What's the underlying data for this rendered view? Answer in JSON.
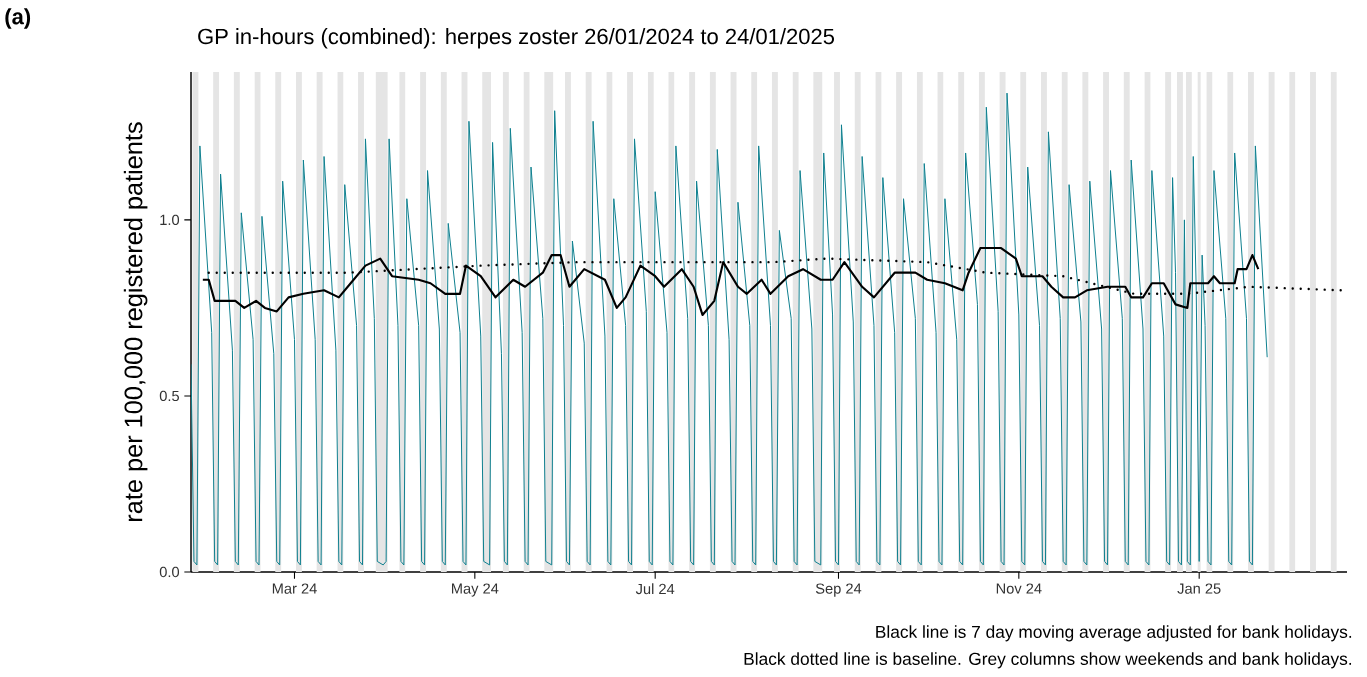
{
  "chart_data": {
    "type": "line",
    "title": "GP in-hours (combined): herpes zoster 26/01/2024 to 24/01/2025",
    "ylabel": "rate per 100,000 registered patients",
    "annotations": [
      "(a)",
      "Black line is 7 day moving average adjusted for bank holidays.",
      "Black dotted line is baseline. Grey columns show weekends and bank holidays."
    ],
    "xlim": [
      "2024-01-26",
      "2025-02-20"
    ],
    "xticks": [
      {
        "value": "2024-03-01",
        "label": "Mar 24"
      },
      {
        "value": "2024-05-01",
        "label": "May 24"
      },
      {
        "value": "2024-07-01",
        "label": "Jul 24"
      },
      {
        "value": "2024-09-01",
        "label": "Sep 24"
      },
      {
        "value": "2024-11-01",
        "label": "Nov 24"
      },
      {
        "value": "2025-01-01",
        "label": "Jan 25"
      }
    ],
    "ylim": [
      0,
      1.42
    ],
    "yticks": [
      {
        "value": 0,
        "label": "0.0"
      },
      {
        "value": 0.5,
        "label": "0.5"
      },
      {
        "value": 1.0,
        "label": "1.0"
      }
    ],
    "bands": [
      {
        "axis": "x",
        "from": "2024-01-26T12:00",
        "to": "2024-01-28T12:00",
        "color": "#e5e5e5"
      },
      {
        "axis": "x",
        "from": "2024-02-02T12:00",
        "to": "2024-02-04T12:00",
        "color": "#e5e5e5"
      },
      {
        "axis": "x",
        "from": "2024-02-09T12:00",
        "to": "2024-02-11T12:00",
        "color": "#e5e5e5"
      },
      {
        "axis": "x",
        "from": "2024-02-16T12:00",
        "to": "2024-02-18T12:00",
        "color": "#e5e5e5"
      },
      {
        "axis": "x",
        "from": "2024-02-23T12:00",
        "to": "2024-02-25T12:00",
        "color": "#e5e5e5"
      },
      {
        "axis": "x",
        "from": "2024-03-01T12:00",
        "to": "2024-03-03T12:00",
        "color": "#e5e5e5"
      },
      {
        "axis": "x",
        "from": "2024-03-08T12:00",
        "to": "2024-03-10T12:00",
        "color": "#e5e5e5"
      },
      {
        "axis": "x",
        "from": "2024-03-15T12:00",
        "to": "2024-03-17T12:00",
        "color": "#e5e5e5"
      },
      {
        "axis": "x",
        "from": "2024-03-22T12:00",
        "to": "2024-03-24T12:00",
        "color": "#e5e5e5"
      },
      {
        "axis": "x",
        "from": "2024-03-28T12:00",
        "to": "2024-04-01T12:00",
        "color": "#e5e5e5"
      },
      {
        "axis": "x",
        "from": "2024-04-05T12:00",
        "to": "2024-04-07T12:00",
        "color": "#e5e5e5"
      },
      {
        "axis": "x",
        "from": "2024-04-12T12:00",
        "to": "2024-04-14T12:00",
        "color": "#e5e5e5"
      },
      {
        "axis": "x",
        "from": "2024-04-19T12:00",
        "to": "2024-04-21T12:00",
        "color": "#e5e5e5"
      },
      {
        "axis": "x",
        "from": "2024-04-26T12:00",
        "to": "2024-04-28T12:00",
        "color": "#e5e5e5"
      },
      {
        "axis": "x",
        "from": "2024-05-03T12:00",
        "to": "2024-05-06T12:00",
        "color": "#e5e5e5"
      },
      {
        "axis": "x",
        "from": "2024-05-10T12:00",
        "to": "2024-05-12T12:00",
        "color": "#e5e5e5"
      },
      {
        "axis": "x",
        "from": "2024-05-17T12:00",
        "to": "2024-05-19T12:00",
        "color": "#e5e5e5"
      },
      {
        "axis": "x",
        "from": "2024-05-24T12:00",
        "to": "2024-05-27T12:00",
        "color": "#e5e5e5"
      },
      {
        "axis": "x",
        "from": "2024-05-31T12:00",
        "to": "2024-06-02T12:00",
        "color": "#e5e5e5"
      },
      {
        "axis": "x",
        "from": "2024-06-07T12:00",
        "to": "2024-06-09T12:00",
        "color": "#e5e5e5"
      },
      {
        "axis": "x",
        "from": "2024-06-14T12:00",
        "to": "2024-06-16T12:00",
        "color": "#e5e5e5"
      },
      {
        "axis": "x",
        "from": "2024-06-21T12:00",
        "to": "2024-06-23T12:00",
        "color": "#e5e5e5"
      },
      {
        "axis": "x",
        "from": "2024-06-28T12:00",
        "to": "2024-06-30T12:00",
        "color": "#e5e5e5"
      },
      {
        "axis": "x",
        "from": "2024-07-05T12:00",
        "to": "2024-07-07T12:00",
        "color": "#e5e5e5"
      },
      {
        "axis": "x",
        "from": "2024-07-12T12:00",
        "to": "2024-07-14T12:00",
        "color": "#e5e5e5"
      },
      {
        "axis": "x",
        "from": "2024-07-19T12:00",
        "to": "2024-07-21T12:00",
        "color": "#e5e5e5"
      },
      {
        "axis": "x",
        "from": "2024-07-26T12:00",
        "to": "2024-07-28T12:00",
        "color": "#e5e5e5"
      },
      {
        "axis": "x",
        "from": "2024-08-02T12:00",
        "to": "2024-08-04T12:00",
        "color": "#e5e5e5"
      },
      {
        "axis": "x",
        "from": "2024-08-09T12:00",
        "to": "2024-08-11T12:00",
        "color": "#e5e5e5"
      },
      {
        "axis": "x",
        "from": "2024-08-16T12:00",
        "to": "2024-08-18T12:00",
        "color": "#e5e5e5"
      },
      {
        "axis": "x",
        "from": "2024-08-23T12:00",
        "to": "2024-08-26T12:00",
        "color": "#e5e5e5"
      },
      {
        "axis": "x",
        "from": "2024-08-30T12:00",
        "to": "2024-09-01T12:00",
        "color": "#e5e5e5"
      },
      {
        "axis": "x",
        "from": "2024-09-06T12:00",
        "to": "2024-09-08T12:00",
        "color": "#e5e5e5"
      },
      {
        "axis": "x",
        "from": "2024-09-13T12:00",
        "to": "2024-09-15T12:00",
        "color": "#e5e5e5"
      },
      {
        "axis": "x",
        "from": "2024-09-20T12:00",
        "to": "2024-09-22T12:00",
        "color": "#e5e5e5"
      },
      {
        "axis": "x",
        "from": "2024-09-27T12:00",
        "to": "2024-09-29T12:00",
        "color": "#e5e5e5"
      },
      {
        "axis": "x",
        "from": "2024-10-04T12:00",
        "to": "2024-10-06T12:00",
        "color": "#e5e5e5"
      },
      {
        "axis": "x",
        "from": "2024-10-11T12:00",
        "to": "2024-10-13T12:00",
        "color": "#e5e5e5"
      },
      {
        "axis": "x",
        "from": "2024-10-18T12:00",
        "to": "2024-10-20T12:00",
        "color": "#e5e5e5"
      },
      {
        "axis": "x",
        "from": "2024-10-25T12:00",
        "to": "2024-10-27T12:00",
        "color": "#e5e5e5"
      },
      {
        "axis": "x",
        "from": "2024-11-01T12:00",
        "to": "2024-11-03T12:00",
        "color": "#e5e5e5"
      },
      {
        "axis": "x",
        "from": "2024-11-08T12:00",
        "to": "2024-11-10T12:00",
        "color": "#e5e5e5"
      },
      {
        "axis": "x",
        "from": "2024-11-15T12:00",
        "to": "2024-11-17T12:00",
        "color": "#e5e5e5"
      },
      {
        "axis": "x",
        "from": "2024-11-22T12:00",
        "to": "2024-11-24T12:00",
        "color": "#e5e5e5"
      },
      {
        "axis": "x",
        "from": "2024-11-29T12:00",
        "to": "2024-12-01T12:00",
        "color": "#e5e5e5"
      },
      {
        "axis": "x",
        "from": "2024-12-06T12:00",
        "to": "2024-12-08T12:00",
        "color": "#e5e5e5"
      },
      {
        "axis": "x",
        "from": "2024-12-13T12:00",
        "to": "2024-12-15T12:00",
        "color": "#e5e5e5"
      },
      {
        "axis": "x",
        "from": "2024-12-20T12:00",
        "to": "2024-12-22T12:00",
        "color": "#e5e5e5"
      },
      {
        "axis": "x",
        "from": "2024-12-24T12:00",
        "to": "2024-12-26T12:00",
        "color": "#e5e5e5"
      },
      {
        "axis": "x",
        "from": "2024-12-27T12:00",
        "to": "2024-12-29T12:00",
        "color": "#e5e5e5"
      },
      {
        "axis": "x",
        "from": "2024-12-31T12:00",
        "to": "2025-01-01T12:00",
        "color": "#e5e5e5"
      },
      {
        "axis": "x",
        "from": "2025-01-03T12:00",
        "to": "2025-01-05T12:00",
        "color": "#e5e5e5"
      },
      {
        "axis": "x",
        "from": "2025-01-10T12:00",
        "to": "2025-01-12T12:00",
        "color": "#e5e5e5"
      },
      {
        "axis": "x",
        "from": "2025-01-17T12:00",
        "to": "2025-01-19T12:00",
        "color": "#e5e5e5"
      },
      {
        "axis": "x",
        "from": "2025-01-24T12:00",
        "to": "2025-01-26T12:00",
        "color": "#e5e5e5"
      },
      {
        "axis": "x",
        "from": "2025-01-31T12:00",
        "to": "2025-02-02T12:00",
        "color": "#e5e5e5"
      },
      {
        "axis": "x",
        "from": "2025-02-07T12:00",
        "to": "2025-02-09T12:00",
        "color": "#e5e5e5"
      },
      {
        "axis": "x",
        "from": "2025-02-14T12:00",
        "to": "2025-02-16T12:00",
        "color": "#e5e5e5"
      }
    ],
    "series": [
      {
        "color": "#0e7f8f",
        "x": [
          "2024-01-26",
          "2024-01-27",
          "2024-01-28",
          "2024-01-29",
          "2024-02-02",
          "2024-02-03",
          "2024-02-04",
          "2024-02-05",
          "2024-02-09",
          "2024-02-10",
          "2024-02-11",
          "2024-02-12",
          "2024-02-16",
          "2024-02-17",
          "2024-02-18",
          "2024-02-19",
          "2024-02-23",
          "2024-02-24",
          "2024-02-25",
          "2024-02-26",
          "2024-03-01",
          "2024-03-02",
          "2024-03-03",
          "2024-03-04",
          "2024-03-08",
          "2024-03-09",
          "2024-03-10",
          "2024-03-11",
          "2024-03-15",
          "2024-03-16",
          "2024-03-17",
          "2024-03-18",
          "2024-03-22",
          "2024-03-23",
          "2024-03-24",
          "2024-03-25",
          "2024-03-28",
          "2024-03-29",
          "2024-03-31",
          "2024-04-01",
          "2024-04-02",
          "2024-04-05",
          "2024-04-06",
          "2024-04-07",
          "2024-04-08",
          "2024-04-12",
          "2024-04-13",
          "2024-04-14",
          "2024-04-15",
          "2024-04-19",
          "2024-04-20",
          "2024-04-21",
          "2024-04-22",
          "2024-04-26",
          "2024-04-27",
          "2024-04-28",
          "2024-04-29",
          "2024-05-03",
          "2024-05-04",
          "2024-05-06",
          "2024-05-07",
          "2024-05-10",
          "2024-05-11",
          "2024-05-12",
          "2024-05-13",
          "2024-05-17",
          "2024-05-18",
          "2024-05-19",
          "2024-05-20",
          "2024-05-24",
          "2024-05-25",
          "2024-05-27",
          "2024-05-28",
          "2024-05-31",
          "2024-06-01",
          "2024-06-02",
          "2024-06-03",
          "2024-06-07",
          "2024-06-08",
          "2024-06-09",
          "2024-06-10",
          "2024-06-14",
          "2024-06-15",
          "2024-06-16",
          "2024-06-17",
          "2024-06-21",
          "2024-06-22",
          "2024-06-23",
          "2024-06-24",
          "2024-06-28",
          "2024-06-29",
          "2024-06-30",
          "2024-07-01",
          "2024-07-05",
          "2024-07-06",
          "2024-07-07",
          "2024-07-08",
          "2024-07-12",
          "2024-07-13",
          "2024-07-14",
          "2024-07-15",
          "2024-07-19",
          "2024-07-20",
          "2024-07-21",
          "2024-07-22",
          "2024-07-26",
          "2024-07-27",
          "2024-07-28",
          "2024-07-29",
          "2024-08-02",
          "2024-08-03",
          "2024-08-04",
          "2024-08-05",
          "2024-08-09",
          "2024-08-10",
          "2024-08-11",
          "2024-08-12",
          "2024-08-16",
          "2024-08-17",
          "2024-08-18",
          "2024-08-19",
          "2024-08-23",
          "2024-08-24",
          "2024-08-26",
          "2024-08-27",
          "2024-08-30",
          "2024-08-31",
          "2024-09-01",
          "2024-09-02",
          "2024-09-06",
          "2024-09-07",
          "2024-09-08",
          "2024-09-09",
          "2024-09-13",
          "2024-09-14",
          "2024-09-15",
          "2024-09-16",
          "2024-09-20",
          "2024-09-21",
          "2024-09-22",
          "2024-09-23",
          "2024-09-27",
          "2024-09-28",
          "2024-09-29",
          "2024-09-30",
          "2024-10-04",
          "2024-10-05",
          "2024-10-06",
          "2024-10-07",
          "2024-10-11",
          "2024-10-12",
          "2024-10-13",
          "2024-10-14",
          "2024-10-18",
          "2024-10-19",
          "2024-10-20",
          "2024-10-21",
          "2024-10-25",
          "2024-10-26",
          "2024-10-27",
          "2024-10-28",
          "2024-11-01",
          "2024-11-02",
          "2024-11-03",
          "2024-11-04",
          "2024-11-08",
          "2024-11-09",
          "2024-11-10",
          "2024-11-11",
          "2024-11-15",
          "2024-11-16",
          "2024-11-17",
          "2024-11-18",
          "2024-11-22",
          "2024-11-23",
          "2024-11-24",
          "2024-11-25",
          "2024-11-29",
          "2024-11-30",
          "2024-12-01",
          "2024-12-02",
          "2024-12-06",
          "2024-12-07",
          "2024-12-08",
          "2024-12-09",
          "2024-12-13",
          "2024-12-14",
          "2024-12-15",
          "2024-12-16",
          "2024-12-20",
          "2024-12-21",
          "2024-12-22",
          "2024-12-23",
          "2024-12-24",
          "2024-12-25",
          "2024-12-26",
          "2024-12-27",
          "2024-12-28",
          "2024-12-29",
          "2024-12-30",
          "2024-12-31",
          "2025-01-01",
          "2025-01-02",
          "2025-01-03",
          "2025-01-04",
          "2025-01-05",
          "2025-01-06",
          "2025-01-10",
          "2025-01-11",
          "2025-01-12",
          "2025-01-13",
          "2025-01-17",
          "2025-01-18",
          "2025-01-19",
          "2025-01-20",
          "2025-01-24"
        ],
        "values": [
          0.59,
          0.03,
          0.02,
          1.21,
          0.68,
          0.03,
          0.02,
          1.13,
          0.63,
          0.03,
          0.02,
          1.02,
          0.66,
          0.03,
          0.02,
          1.01,
          0.62,
          0.03,
          0.02,
          1.11,
          0.66,
          0.03,
          0.02,
          1.17,
          0.66,
          0.03,
          0.02,
          1.18,
          0.63,
          0.03,
          0.02,
          1.1,
          0.7,
          0.03,
          0.02,
          1.23,
          0.72,
          0.03,
          0.02,
          0.03,
          1.23,
          0.7,
          0.03,
          0.02,
          1.06,
          0.7,
          0.03,
          0.02,
          1.14,
          0.69,
          0.03,
          0.02,
          0.99,
          0.68,
          0.03,
          0.02,
          1.28,
          0.67,
          0.03,
          0.02,
          1.22,
          0.62,
          0.03,
          0.02,
          1.26,
          0.68,
          0.03,
          0.02,
          1.15,
          0.72,
          0.03,
          0.02,
          1.31,
          0.7,
          0.03,
          0.02,
          0.94,
          0.65,
          0.03,
          0.02,
          1.28,
          0.67,
          0.03,
          0.02,
          1.06,
          0.7,
          0.03,
          0.02,
          1.23,
          0.74,
          0.03,
          0.02,
          1.08,
          0.68,
          0.03,
          0.02,
          1.21,
          0.72,
          0.03,
          0.02,
          1.11,
          0.7,
          0.03,
          0.02,
          1.2,
          0.66,
          0.03,
          0.02,
          1.05,
          0.7,
          0.03,
          0.02,
          1.21,
          0.7,
          0.03,
          0.02,
          0.97,
          0.72,
          0.03,
          0.02,
          1.14,
          0.69,
          0.03,
          0.02,
          1.19,
          0.73,
          0.03,
          0.02,
          1.27,
          0.71,
          0.03,
          0.02,
          1.18,
          0.7,
          0.03,
          0.02,
          1.12,
          0.68,
          0.03,
          0.02,
          1.06,
          0.72,
          0.03,
          0.02,
          1.16,
          0.68,
          0.03,
          0.02,
          1.06,
          0.66,
          0.03,
          0.02,
          1.19,
          0.76,
          0.03,
          0.02,
          1.32,
          0.74,
          0.03,
          0.02,
          1.36,
          0.73,
          0.03,
          0.02,
          1.15,
          0.7,
          0.03,
          0.02,
          1.25,
          0.72,
          0.03,
          0.02,
          1.1,
          0.71,
          0.03,
          0.02,
          1.11,
          0.69,
          0.03,
          0.02,
          1.14,
          0.72,
          0.03,
          0.02,
          1.17,
          0.69,
          0.03,
          0.02,
          1.14,
          0.67,
          0.03,
          0.02,
          1.12,
          0.85,
          0.03,
          0.02,
          1.0,
          0.03,
          0.02,
          1.18,
          0.8,
          0.03,
          0.9,
          0.7,
          0.03,
          0.02,
          1.14,
          0.72,
          0.03,
          0.02,
          1.19,
          0.72,
          0.03,
          0.02,
          1.21,
          0.61
        ]
      },
      {
        "color": "#000000",
        "x": [
          "2024-01-30",
          "2024-02-01",
          "2024-02-03",
          "2024-02-10",
          "2024-02-13",
          "2024-02-17",
          "2024-02-20",
          "2024-02-24",
          "2024-02-28",
          "2024-03-04",
          "2024-03-11",
          "2024-03-16",
          "2024-03-20",
          "2024-03-25",
          "2024-03-30",
          "2024-04-03",
          "2024-04-12",
          "2024-04-16",
          "2024-04-21",
          "2024-04-26",
          "2024-04-28",
          "2024-05-03",
          "2024-05-08",
          "2024-05-14",
          "2024-05-18",
          "2024-05-24",
          "2024-05-27",
          "2024-05-30",
          "2024-06-02",
          "2024-06-07",
          "2024-06-14",
          "2024-06-18",
          "2024-06-21",
          "2024-06-26",
          "2024-07-01",
          "2024-07-04",
          "2024-07-10",
          "2024-07-14",
          "2024-07-17",
          "2024-07-21",
          "2024-07-24",
          "2024-07-29",
          "2024-08-01",
          "2024-08-06",
          "2024-08-09",
          "2024-08-15",
          "2024-08-20",
          "2024-08-26",
          "2024-08-30",
          "2024-09-03",
          "2024-09-09",
          "2024-09-13",
          "2024-09-20",
          "2024-09-27",
          "2024-10-01",
          "2024-10-07",
          "2024-10-13",
          "2024-10-15",
          "2024-10-19",
          "2024-10-26",
          "2024-10-31",
          "2024-11-02",
          "2024-11-09",
          "2024-11-12",
          "2024-11-16",
          "2024-11-20",
          "2024-11-24",
          "2024-12-01",
          "2024-12-07",
          "2024-12-09",
          "2024-12-13",
          "2024-12-16",
          "2024-12-20",
          "2024-12-24",
          "2024-12-28",
          "2024-12-29",
          "2025-01-04",
          "2025-01-06",
          "2025-01-08",
          "2025-01-13",
          "2025-01-14",
          "2025-01-17",
          "2025-01-19",
          "2025-01-21"
        ],
        "values": [
          0.83,
          0.83,
          0.77,
          0.77,
          0.75,
          0.77,
          0.75,
          0.74,
          0.78,
          0.79,
          0.8,
          0.78,
          0.82,
          0.87,
          0.89,
          0.84,
          0.83,
          0.82,
          0.79,
          0.79,
          0.87,
          0.84,
          0.78,
          0.83,
          0.81,
          0.85,
          0.9,
          0.9,
          0.81,
          0.86,
          0.83,
          0.75,
          0.78,
          0.87,
          0.84,
          0.81,
          0.86,
          0.81,
          0.73,
          0.77,
          0.88,
          0.81,
          0.79,
          0.83,
          0.79,
          0.84,
          0.86,
          0.83,
          0.83,
          0.88,
          0.81,
          0.78,
          0.85,
          0.85,
          0.83,
          0.82,
          0.8,
          0.85,
          0.92,
          0.92,
          0.89,
          0.84,
          0.84,
          0.81,
          0.78,
          0.78,
          0.8,
          0.81,
          0.81,
          0.78,
          0.78,
          0.82,
          0.82,
          0.76,
          0.75,
          0.82,
          0.82,
          0.84,
          0.82,
          0.82,
          0.86,
          0.86,
          0.9,
          0.86
        ]
      },
      {
        "color": "#000000",
        "line_style": "dotted",
        "x": [
          "2024-02-01",
          "2024-03-19",
          "2024-05-03",
          "2024-06-04",
          "2024-07-08",
          "2024-08-10",
          "2024-08-28",
          "2024-10-01",
          "2024-10-21",
          "2024-11-16",
          "2024-12-10",
          "2024-12-28",
          "2025-01-18",
          "2025-02-18"
        ],
        "values": [
          0.85,
          0.85,
          0.87,
          0.88,
          0.88,
          0.88,
          0.89,
          0.88,
          0.85,
          0.84,
          0.79,
          0.79,
          0.81,
          0.8
        ]
      }
    ]
  }
}
